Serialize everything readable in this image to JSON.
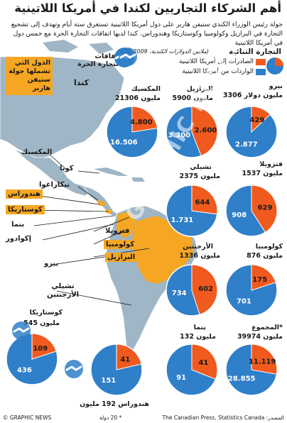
{
  "title": "أهم الشركاء التجاريين لكندا في أمريكا اللاتينية",
  "intro": "جولة رئيس الوزراء الكندي ستيفن هاربر على دول أمريكا اللاتينية تستغرق ستة أيام وتهدف إلى تشجيع التجارة في البرازيل وكولومبيا وكوستاريكا وهندوراس. كندا لديها اتفاقات التجارة الحرة مع خمس دول في أمريكا اللاتينية",
  "legend": {
    "heading": "التجارة الثنائية",
    "subheading": "(ملايين الدولارات الكندية، 2009-10)",
    "exports": "الصادرات إلى أمريكا اللاتينية",
    "imports": "الواردات من أمريكا اللاتينية",
    "fta": "اتفاقات التجارة الحرة",
    "tour": "الدول التي تشملها جولة ستيفن هاربر"
  },
  "colors": {
    "exports": "#f05a1e",
    "imports": "#2f7fc9",
    "tour": "#f5a623",
    "land": "#9fb6c6",
    "sea": "#ffffff"
  },
  "map_labels": {
    "canada": "كندا",
    "mexico": "المكسيك",
    "cuba": "كوبا",
    "nicaragua": "نيكاراغوا",
    "honduras": "هندوراس",
    "costa_rica": "كوستاريكا",
    "panama": "بنما",
    "ecuador": "إكوادور",
    "venezuela": "فنزويلا",
    "colombia": "كولومبيا",
    "brazil": "البرازيل",
    "peru": "بيرو",
    "chile_argentina": "تشيلي\nالأرجنتين"
  },
  "chart_data": {
    "type": "pie",
    "title": "التجارة الثنائية",
    "units": "ملايين الدولارات الكندية، 2009-10",
    "series": [
      "الصادرات إلى أمريكا اللاتينية",
      "الواردات من أمريكا اللاتينية"
    ],
    "pies": [
      {
        "country": "المكسيك",
        "total": "21306 مليون",
        "exports": 4800,
        "imports": 16506,
        "exports_label": "4.800",
        "imports_label": "16.506"
      },
      {
        "country": "البرازيل",
        "total": "5900 مليون",
        "exports": 2600,
        "imports": 3300,
        "exports_label": "2.600",
        "imports_label": "3.300"
      },
      {
        "country": "بيرو",
        "total": "3306 مليون دولار",
        "exports": 429,
        "imports": 2877,
        "exports_label": "429",
        "imports_label": "2.877"
      },
      {
        "country": "تشيلي",
        "total": "2375 مليون",
        "exports": 644,
        "imports": 1731,
        "exports_label": "644",
        "imports_label": "1.731"
      },
      {
        "country": "فنزويلا",
        "total": "1537 مليون",
        "exports": 629,
        "imports": 908,
        "exports_label": "629",
        "imports_label": "908"
      },
      {
        "country": "الأرجنتين",
        "total": "1336 مليون",
        "exports": 602,
        "imports": 734,
        "exports_label": "602",
        "imports_label": "734"
      },
      {
        "country": "كولومبيا",
        "total": "876 مليون",
        "exports": 175,
        "imports": 701,
        "exports_label": "175",
        "imports_label": "701"
      },
      {
        "country": "كوستاريكا",
        "total": "545 مليون",
        "exports": 109,
        "imports": 436,
        "exports_label": "109",
        "imports_label": "436"
      },
      {
        "country": "بنما",
        "total": "132 مليون",
        "exports": 41,
        "imports": 91,
        "exports_label": "41",
        "imports_label": "91"
      },
      {
        "country": "المجموع*",
        "total": "39974 مليون",
        "exports": 11119,
        "imports": 28855,
        "exports_label": "11.119",
        "imports_label": "28.855"
      },
      {
        "country": "هندوراس",
        "total": "192 مليون",
        "exports": 41,
        "imports": 151,
        "exports_label": "41",
        "imports_label": "151"
      }
    ]
  },
  "footnote": "* 20 دولة",
  "source": "المصدر: The Canadian Press, Statistics Canada",
  "credit": "© GRAPHIC NEWS",
  "watermark": "GRAPHIC NEWS"
}
